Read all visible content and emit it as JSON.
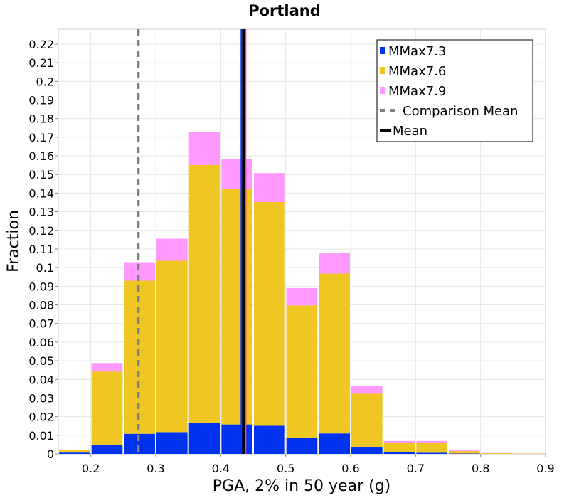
{
  "chart_data": {
    "type": "bar",
    "stacked": true,
    "title": "Portland",
    "xlabel": "PGA, 2% in 50 year (g)",
    "ylabel": "Fraction",
    "xlim": [
      0.15,
      0.9
    ],
    "ylim": [
      0,
      0.228
    ],
    "x_ticks": [
      "0.2",
      "0.3",
      "0.4",
      "0.5",
      "0.6",
      "0.7",
      "0.8",
      "0.9"
    ],
    "y_ticks": [
      "0",
      "0.01",
      "0.02",
      "0.03",
      "0.04",
      "0.05",
      "0.06",
      "0.07",
      "0.08",
      "0.09",
      "0.1",
      "0.11",
      "0.12",
      "0.13",
      "0.14",
      "0.15",
      "0.16",
      "0.17",
      "0.18",
      "0.19",
      "0.2",
      "0.21",
      "0.22"
    ],
    "grid": true,
    "bin_width": 0.05,
    "x": [
      0.175,
      0.225,
      0.275,
      0.325,
      0.375,
      0.425,
      0.475,
      0.525,
      0.575,
      0.625,
      0.675,
      0.725,
      0.775,
      0.825,
      0.875
    ],
    "series": [
      {
        "name": "MMax7.3",
        "color": "#0033ee",
        "values": [
          0.0007,
          0.005,
          0.0108,
          0.0117,
          0.0168,
          0.0158,
          0.0151,
          0.0085,
          0.011,
          0.0035,
          0.0008,
          0.0006,
          0.0002,
          5e-05,
          3e-05
        ]
      },
      {
        "name": "MMax7.6",
        "color": "#f0c623",
        "values": [
          0.0013,
          0.0392,
          0.0822,
          0.092,
          0.1383,
          0.1266,
          0.1201,
          0.0712,
          0.0858,
          0.0288,
          0.0052,
          0.0052,
          0.0013,
          0.0004,
          0.0002
        ]
      },
      {
        "name": "MMax7.9",
        "color": "#ff99ff",
        "values": [
          0.0003,
          0.0046,
          0.0099,
          0.0118,
          0.0176,
          0.0159,
          0.0156,
          0.0093,
          0.0111,
          0.0043,
          0.0009,
          0.0011,
          0.0004,
          0.0001,
          5e-05
        ]
      }
    ],
    "comparison_mean": {
      "name": "Comparison Mean",
      "x": 0.273,
      "color": "#808080"
    },
    "mean": {
      "name": "Mean",
      "x": 0.435,
      "color": "#000000"
    },
    "legend_position": "top-right"
  }
}
